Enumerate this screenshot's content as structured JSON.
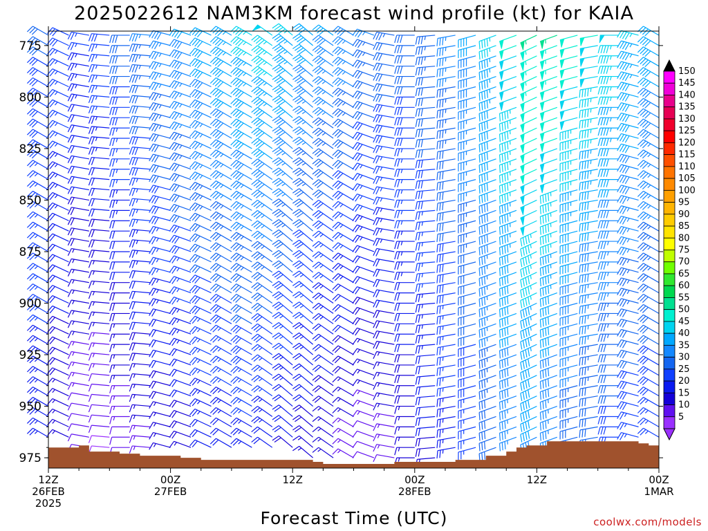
{
  "chart_data": {
    "type": "wind-barb time-height profile",
    "title": "2025022612 NAM3KM forecast wind profile (kt) for KAIA",
    "xlabel": "Forecast Time (UTC)",
    "yaxis_ticks": [
      "775",
      "800",
      "825",
      "850",
      "875",
      "900",
      "925",
      "950",
      "975"
    ],
    "ylim": [
      980,
      768
    ],
    "x_ticks": [
      {
        "line1": "12Z",
        "line2": "26FEB",
        "line3": "2025",
        "hour": 0
      },
      {
        "line1": "00Z",
        "line2": "27FEB",
        "line3": "",
        "hour": 12
      },
      {
        "line1": "12Z",
        "line2": "",
        "line3": "",
        "hour": 24
      },
      {
        "line1": "00Z",
        "line2": "28FEB",
        "line3": "",
        "hour": 36
      },
      {
        "line1": "12Z",
        "line2": "",
        "line3": "",
        "hour": 48
      },
      {
        "line1": "00Z",
        "line2": "1MAR",
        "line3": "",
        "hour": 60
      }
    ],
    "xlim_hours": [
      0,
      60
    ],
    "colorbar": {
      "units": "kt",
      "labels": [
        "150",
        "145",
        "140",
        "135",
        "130",
        "125",
        "120",
        "115",
        "110",
        "105",
        "100",
        "95",
        "90",
        "85",
        "80",
        "75",
        "70",
        "65",
        "60",
        "55",
        "50",
        "45",
        "40",
        "35",
        "30",
        "25",
        "20",
        "15",
        "10",
        "5"
      ],
      "colors": [
        "#ff00ff",
        "#f000d8",
        "#e8008c",
        "#e60054",
        "#f0002c",
        "#ff0000",
        "#ff2a00",
        "#ff5000",
        "#ff7400",
        "#ff8a00",
        "#ffa000",
        "#ffb400",
        "#ffcc00",
        "#ffe400",
        "#ffff00",
        "#c0ff00",
        "#70ff00",
        "#30e830",
        "#00d850",
        "#00e090",
        "#00f0d0",
        "#00d4f0",
        "#00a8ff",
        "#1488ff",
        "#1466f0",
        "#1040ff",
        "#0a1af0",
        "#1400d8",
        "#6010f0",
        "#9a30ff"
      ]
    },
    "terrain_color": "#a0522d",
    "terrain_pressure_by_hour": [
      [
        0,
        970
      ],
      [
        2,
        970
      ],
      [
        3,
        969
      ],
      [
        4,
        972
      ],
      [
        5,
        972
      ],
      [
        7,
        973
      ],
      [
        9,
        974
      ],
      [
        11,
        974
      ],
      [
        13,
        975
      ],
      [
        15,
        976
      ],
      [
        20,
        976
      ],
      [
        24,
        976
      ],
      [
        26,
        977
      ],
      [
        27,
        978
      ],
      [
        30,
        978
      ],
      [
        32,
        978
      ],
      [
        34,
        977
      ],
      [
        37,
        977
      ],
      [
        40,
        976
      ],
      [
        43,
        974
      ],
      [
        45,
        972
      ],
      [
        46,
        970
      ],
      [
        47,
        969
      ],
      [
        49,
        967
      ],
      [
        53,
        967
      ],
      [
        55,
        967
      ],
      [
        57,
        967
      ],
      [
        58,
        968
      ],
      [
        59,
        969
      ],
      [
        60,
        970
      ]
    ],
    "barb_hours": [
      0,
      2,
      4,
      6,
      8,
      10,
      12,
      14,
      16,
      18,
      20,
      22,
      24,
      26,
      28,
      30,
      32,
      34,
      36,
      38,
      40,
      42,
      44,
      46,
      48,
      50,
      52,
      54,
      56,
      58,
      60
    ],
    "pressure_levels": [
      770,
      775,
      780,
      785,
      790,
      795,
      800,
      805,
      810,
      815,
      820,
      825,
      830,
      835,
      840,
      845,
      850,
      855,
      860,
      865,
      870,
      875,
      880,
      885,
      890,
      895,
      900,
      905,
      910,
      915,
      920,
      925,
      930,
      935,
      940,
      945,
      950,
      955,
      960,
      965,
      970,
      975
    ],
    "wind_direction_deg_by_hour": {
      "0": 300,
      "2": 295,
      "4": 280,
      "6": 275,
      "8": 270,
      "10": 275,
      "12": 285,
      "14": 290,
      "16": 295,
      "18": 300,
      "20": 300,
      "22": 305,
      "24": 310,
      "26": 310,
      "28": 305,
      "30": 300,
      "32": 290,
      "34": 280,
      "36": 270,
      "38": 265,
      "40": 260,
      "42": 255,
      "44": 250,
      "46": 250,
      "48": 245,
      "50": 250,
      "52": 255,
      "54": 260,
      "56": 270,
      "58": 285,
      "60": 300
    },
    "wind_speed_kt_upper_by_hour": {
      "0": 30,
      "2": 28,
      "4": 25,
      "6": 28,
      "8": 32,
      "10": 35,
      "12": 38,
      "14": 40,
      "16": 42,
      "18": 44,
      "20": 46,
      "22": 48,
      "24": 45,
      "26": 42,
      "28": 40,
      "30": 38,
      "32": 35,
      "34": 33,
      "36": 32,
      "38": 34,
      "40": 36,
      "42": 40,
      "44": 45,
      "46": 50,
      "48": 55,
      "50": 55,
      "52": 52,
      "54": 50,
      "56": 48,
      "58": 45,
      "60": 42
    },
    "wind_speed_kt_low_by_hour": {
      "0": 22,
      "2": 15,
      "4": 10,
      "6": 8,
      "8": 10,
      "10": 12,
      "12": 14,
      "14": 16,
      "16": 20,
      "18": 20,
      "20": 22,
      "22": 20,
      "24": 18,
      "26": 16,
      "28": 14,
      "30": 12,
      "32": 10,
      "34": 12,
      "36": 15,
      "38": 18,
      "40": 22,
      "42": 25,
      "44": 30,
      "46": 35,
      "48": 38,
      "50": 34,
      "52": 30,
      "54": 28,
      "56": 26,
      "58": 25,
      "60": 25
    }
  },
  "credit": "coolwx.com/models"
}
